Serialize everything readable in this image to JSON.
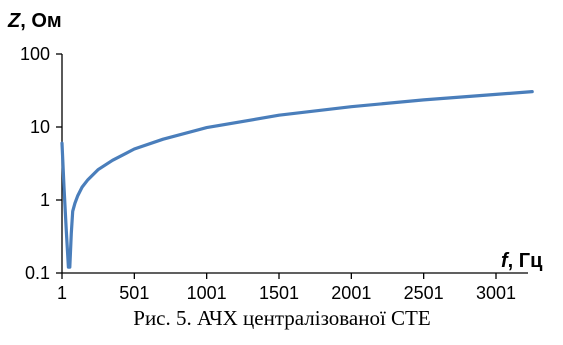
{
  "chart_data": {
    "type": "line",
    "title": "",
    "caption": "Рис. 5. АЧХ централізованої СТЕ",
    "ylabel": {
      "symbol": "Z",
      "unit": ", Ом"
    },
    "xlabel": {
      "symbol": "f",
      "unit": ", Гц"
    },
    "y_scale": "log",
    "ylim": [
      0.1,
      100
    ],
    "xlim": [
      1,
      3500
    ],
    "y_ticks": [
      "0.1",
      "1",
      "10",
      "100"
    ],
    "x_ticks": [
      "1",
      "501",
      "1001",
      "1501",
      "2001",
      "2501",
      "3001"
    ],
    "grid": false,
    "legend": "none",
    "series": [
      {
        "color": "#4a7ebb",
        "x": [
          1,
          15,
          30,
          45,
          55,
          65,
          75,
          90,
          110,
          140,
          180,
          250,
          350,
          501,
          700,
          1001,
          1501,
          2001,
          2501,
          3001,
          3251
        ],
        "y": [
          6.0,
          1.5,
          0.4,
          0.12,
          0.12,
          0.35,
          0.7,
          0.9,
          1.15,
          1.5,
          1.9,
          2.6,
          3.5,
          5.0,
          6.8,
          9.8,
          14.5,
          19.0,
          23.5,
          28.0,
          30.5
        ]
      }
    ]
  }
}
